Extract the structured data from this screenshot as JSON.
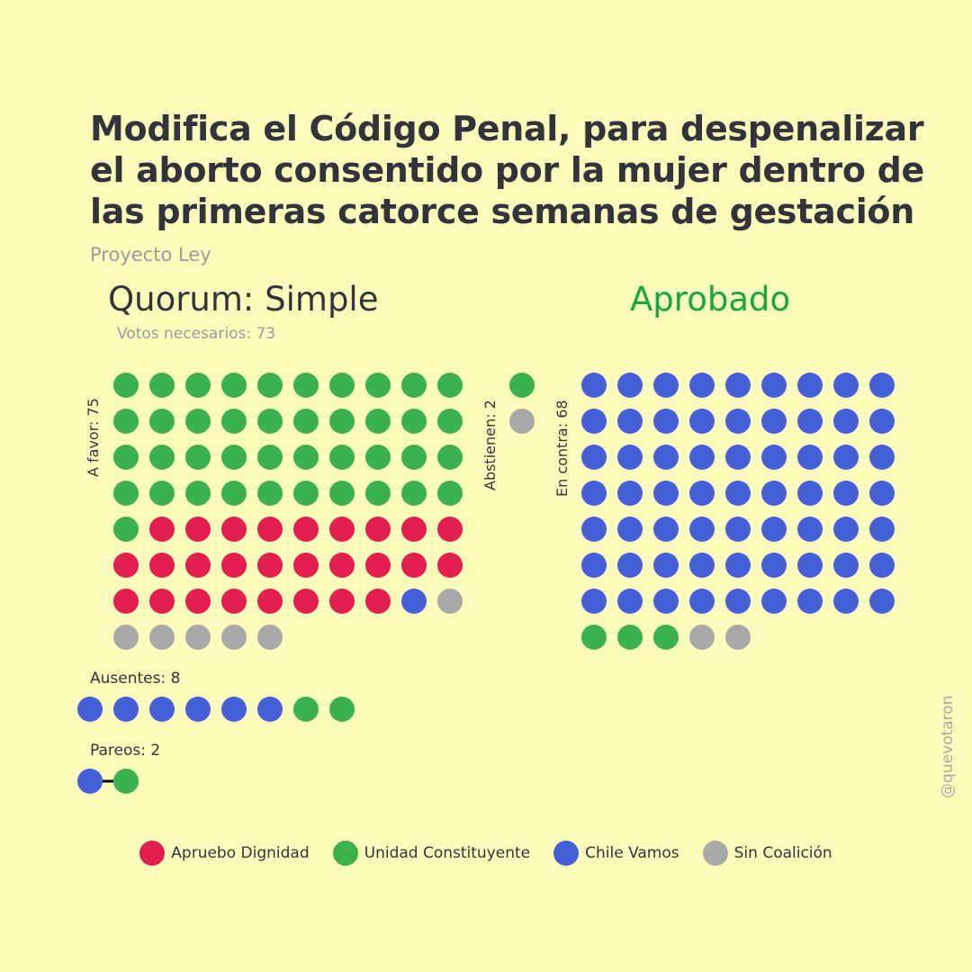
{
  "title": "Modifica el Código Penal, para despenalizar\nel aborto consentido por la mujer dentro de\nlas primeras catorce semanas de gestación",
  "subtitle": "Proyecto Ley",
  "quorum_label": "Quorum: Simple",
  "result_label": "Aprobado",
  "votes_needed_label": "Votos necesarios: 73",
  "credit": "@quevotaron",
  "colors": {
    "background": "#fdfdbb",
    "Apruebo Dignidad": "#e41e4e",
    "Unidad Constituyente": "#3bb24e",
    "Chile Vamos": "#4360d9",
    "Sin Coalición": "#a9a9a9",
    "result": "#15a83a"
  },
  "chart_data": {
    "type": "dot-matrix",
    "title": "Modifica el Código Penal, para despenalizar el aborto consentido por la mujer dentro de las primeras catorce semanas de gestación",
    "legend": [
      "Apruebo Dignidad",
      "Unidad Constituyente",
      "Chile Vamos",
      "Sin Coalición"
    ],
    "groups": [
      {
        "key": "favor",
        "label": "A favor: 75",
        "total": 75,
        "breakdown": [
          {
            "coalition": "Unidad Constituyente",
            "count": 41
          },
          {
            "coalition": "Apruebo Dignidad",
            "count": 27
          },
          {
            "coalition": "Chile Vamos",
            "count": 1
          },
          {
            "coalition": "Sin Coalición",
            "count": 6
          }
        ]
      },
      {
        "key": "abstencion",
        "label": "Abstienen: 2",
        "total": 2,
        "breakdown": [
          {
            "coalition": "Unidad Constituyente",
            "count": 1
          },
          {
            "coalition": "Sin Coalición",
            "count": 1
          }
        ]
      },
      {
        "key": "contra",
        "label": "En contra: 68",
        "total": 68,
        "breakdown": [
          {
            "coalition": "Chile Vamos",
            "count": 63
          },
          {
            "coalition": "Unidad Constituyente",
            "count": 3
          },
          {
            "coalition": "Sin Coalición",
            "count": 2
          }
        ]
      },
      {
        "key": "ausentes",
        "label": "Ausentes: 8",
        "total": 8,
        "breakdown": [
          {
            "coalition": "Chile Vamos",
            "count": 6
          },
          {
            "coalition": "Unidad Constituyente",
            "count": 2
          }
        ]
      },
      {
        "key": "pareos",
        "label": "Pareos: 2",
        "total": 2,
        "breakdown": [
          {
            "coalition": "Chile Vamos",
            "count": 1
          },
          {
            "coalition": "Unidad Constituyente",
            "count": 1
          }
        ]
      }
    ]
  }
}
